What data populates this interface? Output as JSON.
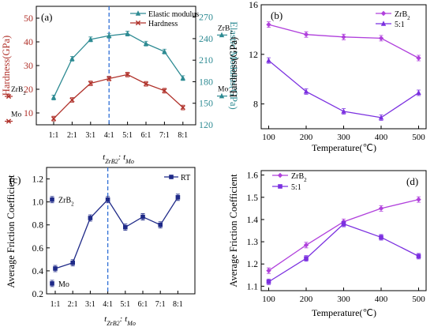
{
  "colors": {
    "red": "#b0312a",
    "teal": "#2e8b93",
    "purple_1": "#b040dc",
    "purple_2": "#7b30e0",
    "navy": "#1f2a88",
    "dash": "#2f6fd6",
    "axis": "#000000"
  },
  "chart_data": [
    {
      "panel": "(a)",
      "type": "line",
      "categories": [
        "1:1",
        "2:1",
        "3:1",
        "4:1",
        "5:1",
        "6:1",
        "7:1",
        "8:1"
      ],
      "xlabel_main": "t",
      "xlabel_sub1": "ZrB2",
      "xlabel_mid": ": t",
      "xlabel_sub2": "Mo",
      "ylabel_left": "Hardness(GPa)",
      "ylabel_right": "Elastic Modulus(GPa)",
      "ylim_left": [
        5,
        55
      ],
      "yticks_left": [
        10,
        20,
        30,
        40,
        50
      ],
      "ylim_right": [
        120,
        285
      ],
      "yticks_right": [
        120,
        150,
        180,
        210,
        240,
        270
      ],
      "series": [
        {
          "name": "Elastic modulus",
          "axis": "right",
          "marker": "triangle",
          "color": "#2e8b93",
          "values": [
            158,
            212,
            239,
            244,
            247,
            233,
            222,
            185
          ]
        },
        {
          "name": "Hardness",
          "axis": "left",
          "marker": "x",
          "color": "#b0312a",
          "values": [
            7.6,
            15.5,
            22.5,
            24.5,
            26.2,
            22.3,
            19.4,
            12.3
          ]
        }
      ],
      "reference_left": [
        {
          "label": "ZrB2",
          "base": "ZrB",
          "sub": "2",
          "value": 17
        },
        {
          "label": "Mo",
          "base": "Mo",
          "sub": "",
          "value": 6.5
        }
      ],
      "reference_right": [
        {
          "label": "ZrB2",
          "base": "ZrB",
          "sub": "2",
          "value": 245
        },
        {
          "label": "Mo",
          "base": "Mo",
          "sub": "",
          "value": 160
        }
      ],
      "dashed_line_at_category": "4:1",
      "legend_position": "top-right"
    },
    {
      "panel": "(b)",
      "type": "line",
      "x": [
        100,
        200,
        300,
        400,
        500
      ],
      "xlabel": "Temperature(℃)",
      "ylabel": "Hardness(GPa)",
      "xlim": [
        80,
        520
      ],
      "ylim": [
        6,
        16
      ],
      "yticks": [
        8,
        12,
        16
      ],
      "series": [
        {
          "name": "ZrB2",
          "name_base": "ZrB",
          "name_sub": "2",
          "marker": "diamond",
          "color": "#b040dc",
          "values": [
            14.4,
            13.6,
            13.4,
            13.3,
            11.7
          ]
        },
        {
          "name": "5:1",
          "marker": "triangle",
          "color": "#7b30e0",
          "values": [
            11.5,
            9.0,
            7.4,
            6.9,
            8.9
          ]
        }
      ],
      "legend_position": "top-right"
    },
    {
      "panel": "(c)",
      "type": "line",
      "categories": [
        "1:1",
        "2:1",
        "3:1",
        "4:1",
        "5:1",
        "6:1",
        "7:1",
        "8:1"
      ],
      "xlabel_main": "t",
      "xlabel_sub1": "ZrB2",
      "xlabel_mid": ": t",
      "xlabel_sub2": "Mo",
      "ylabel": "Average Friction Coefficient",
      "ylim": [
        0.2,
        1.3
      ],
      "yticks": [
        0.2,
        0.4,
        0.6,
        0.8,
        1.0,
        1.2
      ],
      "series": [
        {
          "name": "RT",
          "marker": "square",
          "color": "#1f2a88",
          "values": [
            0.42,
            0.47,
            0.86,
            1.02,
            0.78,
            0.87,
            0.8,
            1.04
          ]
        }
      ],
      "reference": [
        {
          "label": "ZrB2",
          "base": "ZrB",
          "sub": "2",
          "value": 1.02
        },
        {
          "label": "Mo",
          "base": "Mo",
          "sub": "",
          "value": 0.29
        }
      ],
      "dashed_line_at_category": "4:1",
      "legend_position": "top-right"
    },
    {
      "panel": "(d)",
      "type": "line",
      "x": [
        100,
        200,
        300,
        400,
        500
      ],
      "xlabel": "Temperature(℃)",
      "ylabel": "Average Friction Coefficient",
      "xlim": [
        80,
        520
      ],
      "ylim": [
        1.08,
        1.62
      ],
      "yticks": [
        1.1,
        1.2,
        1.3,
        1.4,
        1.5,
        1.6
      ],
      "series": [
        {
          "name": "ZrB2",
          "name_base": "ZrB",
          "name_sub": "2",
          "marker": "diamond",
          "color": "#b040dc",
          "values": [
            1.17,
            1.285,
            1.39,
            1.45,
            1.49
          ]
        },
        {
          "name": "5:1",
          "marker": "square",
          "color": "#7b30e0",
          "values": [
            1.12,
            1.225,
            1.38,
            1.32,
            1.235
          ]
        }
      ],
      "legend_position": "top-left"
    }
  ]
}
